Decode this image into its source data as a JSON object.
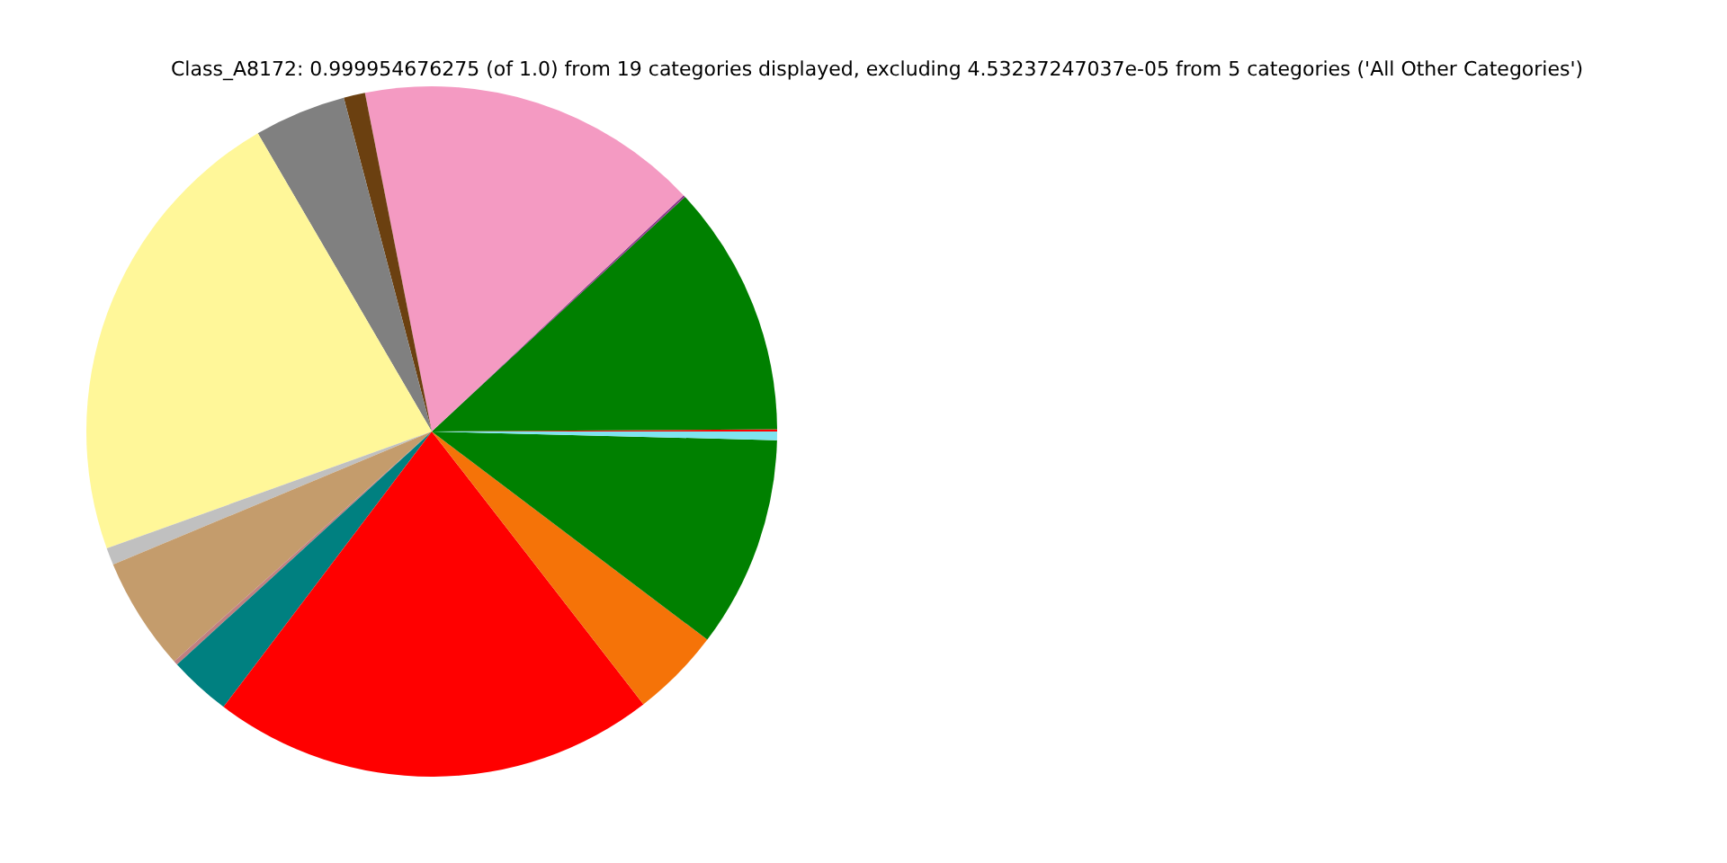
{
  "chart_data": {
    "type": "pie",
    "title": "Class_A8172: 0.999954676275 (of 1.0) from 19 categories displayed, excluding 4.53237247037e-05 from 5 categories ('All Other Categories')",
    "categories": [
      null,
      null,
      null,
      null,
      null,
      null,
      null,
      null,
      null,
      null,
      null,
      null,
      null,
      null,
      null
    ],
    "values": [
      0.1,
      11.8,
      0.1,
      16.1,
      1.0,
      4.3,
      22.1,
      0.8,
      5.3,
      0.2,
      2.9,
      20.8,
      4.2,
      9.9,
      0.4
    ],
    "colors": [
      "#ff0000",
      "#008000",
      "#8b3a8b",
      "#f49ac2",
      "#6b4010",
      "#808080",
      "#fff799",
      "#c0c0c0",
      "#c49c6c",
      "#c08081",
      "#008080",
      "#ff0000",
      "#f57308",
      "#008000",
      "#7fe4f0"
    ],
    "legend": false
  }
}
